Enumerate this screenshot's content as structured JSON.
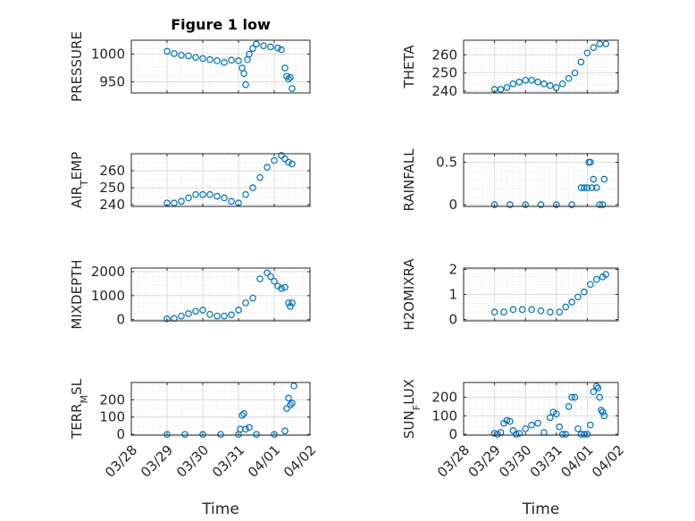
{
  "chart_data": [
    {
      "type": "scatter",
      "title": "Figure 1 low",
      "ylabel": "PRESSURE",
      "ylim": [
        930,
        1025
      ],
      "yticks": [
        950,
        1000
      ],
      "xlim": [
        0,
        5
      ],
      "xticks": [
        0,
        1,
        2,
        3,
        4,
        5
      ],
      "xticklabels": [],
      "xlabel": "",
      "grid": true,
      "x": [
        1.0,
        1.2,
        1.4,
        1.6,
        1.8,
        2.0,
        2.2,
        2.4,
        2.6,
        2.8,
        3.0,
        3.1,
        3.15,
        3.2,
        3.25,
        3.3,
        3.4,
        3.5,
        3.7,
        3.9,
        4.1,
        4.2,
        4.3,
        4.35,
        4.4,
        4.45,
        4.5
      ],
      "values": [
        1005,
        1001,
        998,
        997,
        994,
        992,
        990,
        988,
        985,
        989,
        988,
        975,
        965,
        945,
        990,
        1000,
        1010,
        1018,
        1015,
        1013,
        1011,
        1008,
        975,
        960,
        955,
        958,
        938
      ]
    },
    {
      "type": "scatter",
      "title": "",
      "ylabel": "THETA",
      "ylim": [
        239,
        268
      ],
      "yticks": [
        240,
        250,
        260
      ],
      "xlim": [
        0,
        5
      ],
      "xticks": [
        0,
        1,
        2,
        3,
        4,
        5
      ],
      "xticklabels": [],
      "xlabel": "",
      "grid": true,
      "x": [
        1.0,
        1.2,
        1.4,
        1.6,
        1.8,
        2.0,
        2.2,
        2.4,
        2.6,
        2.8,
        3.0,
        3.2,
        3.4,
        3.6,
        3.8,
        4.0,
        4.2,
        4.4,
        4.6
      ],
      "values": [
        241,
        241,
        242,
        244,
        245,
        246,
        246,
        245,
        244,
        243,
        242,
        244,
        247,
        250,
        256,
        261,
        264,
        266,
        266
      ]
    },
    {
      "type": "scatter",
      "title": "",
      "ylabel": "AIR_TEMP",
      "ylim": [
        239,
        270
      ],
      "yticks": [
        240,
        250,
        260
      ],
      "xlim": [
        0,
        5
      ],
      "xticks": [
        0,
        1,
        2,
        3,
        4,
        5
      ],
      "xticklabels": [],
      "xlabel": "",
      "grid": true,
      "x": [
        1.0,
        1.2,
        1.4,
        1.6,
        1.8,
        2.0,
        2.2,
        2.4,
        2.6,
        2.8,
        3.0,
        3.2,
        3.4,
        3.6,
        3.8,
        4.0,
        4.2,
        4.3,
        4.4,
        4.5
      ],
      "values": [
        241,
        241,
        242,
        244,
        246,
        246,
        246,
        245,
        244,
        242,
        241,
        246,
        250,
        256,
        262,
        266,
        269,
        267,
        265,
        264
      ]
    },
    {
      "type": "scatter",
      "title": "",
      "ylabel": "RAINFALL",
      "ylim": [
        -0.02,
        0.6
      ],
      "yticks": [
        0,
        0.5
      ],
      "xlim": [
        0,
        5
      ],
      "xticks": [
        0,
        1,
        2,
        3,
        4,
        5
      ],
      "xticklabels": [],
      "xlabel": "",
      "grid": true,
      "x": [
        1.0,
        1.5,
        2.0,
        2.5,
        3.0,
        3.5,
        3.8,
        3.9,
        4.0,
        4.05,
        4.1,
        4.15,
        4.2,
        4.3,
        4.4,
        4.5,
        4.55
      ],
      "values": [
        0,
        0,
        0,
        0,
        0,
        0,
        0.2,
        0.2,
        0.2,
        0.5,
        0.5,
        0.2,
        0.3,
        0.2,
        0,
        0,
        0.3
      ]
    },
    {
      "type": "scatter",
      "title": "",
      "ylabel": "MIXDEPTH",
      "ylim": [
        -50,
        2150
      ],
      "yticks": [
        0,
        1000,
        2000
      ],
      "xlim": [
        0,
        5
      ],
      "xticks": [
        0,
        1,
        2,
        3,
        4,
        5
      ],
      "xticklabels": [],
      "xlabel": "",
      "grid": true,
      "x": [
        1.0,
        1.2,
        1.4,
        1.6,
        1.8,
        2.0,
        2.2,
        2.4,
        2.6,
        2.8,
        3.0,
        3.2,
        3.4,
        3.6,
        3.8,
        3.9,
        4.0,
        4.1,
        4.2,
        4.3,
        4.4,
        4.45,
        4.5
      ],
      "values": [
        30,
        50,
        150,
        250,
        350,
        400,
        220,
        150,
        150,
        200,
        400,
        700,
        900,
        1700,
        1950,
        1800,
        1600,
        1400,
        1300,
        1350,
        700,
        550,
        700
      ]
    },
    {
      "type": "scatter",
      "title": "",
      "ylabel": "H2OMIXRA",
      "ylim": [
        -0.05,
        2.05
      ],
      "yticks": [
        0,
        1,
        2
      ],
      "xlim": [
        0,
        5
      ],
      "xticks": [
        0,
        1,
        2,
        3,
        4,
        5
      ],
      "xticklabels": [],
      "xlabel": "",
      "grid": true,
      "x": [
        1.0,
        1.3,
        1.6,
        1.9,
        2.2,
        2.5,
        2.8,
        3.1,
        3.3,
        3.5,
        3.7,
        3.9,
        4.1,
        4.3,
        4.5,
        4.6
      ],
      "values": [
        0.3,
        0.3,
        0.4,
        0.4,
        0.4,
        0.35,
        0.3,
        0.3,
        0.5,
        0.7,
        0.9,
        1.1,
        1.4,
        1.6,
        1.7,
        1.8
      ]
    },
    {
      "type": "scatter",
      "title": "",
      "ylabel": "TERR_MSL",
      "ylim": [
        -5,
        300
      ],
      "yticks": [
        0,
        100,
        200
      ],
      "xlim": [
        0,
        5
      ],
      "xticks": [
        0,
        1,
        2,
        3,
        4,
        5
      ],
      "xticklabels": [
        "03/28",
        "03/29",
        "03/30",
        "03/31",
        "04/01",
        "04/02"
      ],
      "xlabel": "Time",
      "grid": true,
      "x": [
        1.0,
        1.5,
        2.0,
        2.5,
        3.0,
        3.05,
        3.1,
        3.15,
        3.2,
        3.3,
        3.5,
        4.0,
        4.3,
        4.35,
        4.4,
        4.45,
        4.5,
        4.55
      ],
      "values": [
        0,
        0,
        0,
        0,
        0,
        30,
        110,
        120,
        30,
        40,
        0,
        0,
        20,
        150,
        210,
        170,
        180,
        280
      ]
    },
    {
      "type": "scatter",
      "title": "",
      "ylabel": "SUN_FLUX",
      "ylim": [
        -5,
        280
      ],
      "yticks": [
        0,
        100,
        200
      ],
      "xlim": [
        0,
        5
      ],
      "xticks": [
        0,
        1,
        2,
        3,
        4,
        5
      ],
      "xticklabels": [
        "03/28",
        "03/29",
        "03/30",
        "03/31",
        "04/01",
        "04/02"
      ],
      "xlabel": "Time",
      "grid": true,
      "x": [
        1.0,
        1.1,
        1.2,
        1.3,
        1.4,
        1.5,
        1.6,
        1.7,
        1.8,
        2.0,
        2.2,
        2.4,
        2.6,
        2.8,
        2.9,
        3.0,
        3.1,
        3.2,
        3.3,
        3.4,
        3.5,
        3.6,
        3.7,
        3.8,
        3.9,
        4.0,
        4.1,
        4.2,
        4.3,
        4.35,
        4.4,
        4.45,
        4.5,
        4.55
      ],
      "values": [
        5,
        0,
        10,
        60,
        75,
        70,
        20,
        0,
        5,
        30,
        50,
        60,
        10,
        90,
        120,
        110,
        40,
        0,
        0,
        150,
        200,
        200,
        30,
        0,
        0,
        0,
        50,
        230,
        260,
        250,
        200,
        130,
        120,
        100
      ]
    }
  ]
}
